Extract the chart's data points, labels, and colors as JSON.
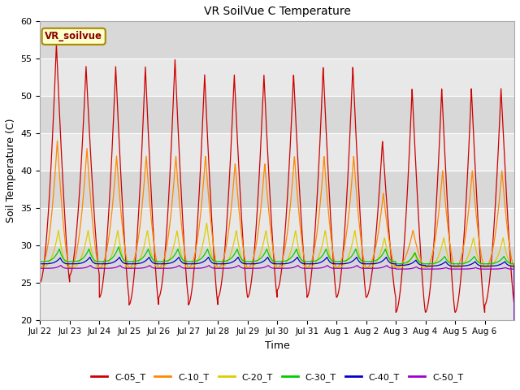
{
  "title": "VR SoilVue C Temperature",
  "xlabel": "Time",
  "ylabel": "Soil Temperature (C)",
  "ylim": [
    20,
    60
  ],
  "background_color": "#e8e8e8",
  "annotation_text": "VR_soilvue",
  "series": [
    {
      "label": "C-05_T",
      "color": "#cc0000"
    },
    {
      "label": "C-10_T",
      "color": "#ff8800"
    },
    {
      "label": "C-20_T",
      "color": "#ddcc00"
    },
    {
      "label": "C-30_T",
      "color": "#00cc00"
    },
    {
      "label": "C-40_T",
      "color": "#0000cc"
    },
    {
      "label": "C-50_T",
      "color": "#9900cc"
    }
  ],
  "xtick_labels": [
    "Jul 22",
    "Jul 23",
    "Jul 24",
    "Jul 25",
    "Jul 26",
    "Jul 27",
    "Jul 28",
    "Jul 29",
    "Jul 30",
    "Jul 31",
    "Aug 1",
    "Aug 2",
    "Aug 3",
    "Aug 4",
    "Aug 5",
    "Aug 6"
  ],
  "ytick_values": [
    20,
    25,
    30,
    35,
    40,
    45,
    50,
    55,
    60
  ],
  "band_colors": [
    "#e8e8e8",
    "#d8d8d8"
  ],
  "peak_05": [
    57,
    54,
    54,
    54,
    55,
    53,
    53,
    53,
    53,
    54,
    54,
    44,
    51,
    51,
    51,
    51
  ],
  "min_05": [
    25,
    26,
    23,
    22,
    23,
    22,
    23,
    23,
    24,
    23,
    23,
    23,
    21,
    21,
    21,
    22
  ],
  "peak_10": [
    44,
    43,
    42,
    42,
    42,
    42,
    41,
    41,
    42,
    42,
    42,
    37,
    32,
    40,
    40,
    40
  ],
  "min_10": [
    27,
    27,
    27,
    27,
    27,
    27,
    27,
    27,
    27,
    27,
    27,
    27,
    27,
    27,
    27,
    27
  ],
  "peak_20": [
    32,
    32,
    32,
    32,
    32,
    33,
    32,
    32,
    32,
    32,
    32,
    31,
    29,
    31,
    31,
    31
  ],
  "min_20": [
    27,
    27,
    27,
    27,
    27,
    27,
    27,
    27,
    27,
    27,
    27,
    27,
    27,
    27,
    27,
    27
  ],
  "peak_30": [
    29.5,
    29.5,
    29.8,
    29.5,
    29.5,
    29.5,
    29.5,
    29.5,
    29.5,
    29.5,
    29.5,
    29.5,
    29.0,
    28.5,
    28.5,
    28.5
  ],
  "min_30": [
    27.8,
    27.8,
    27.8,
    27.8,
    27.8,
    27.8,
    27.8,
    27.8,
    27.8,
    27.8,
    27.8,
    27.8,
    27.5,
    27.5,
    27.5,
    27.5
  ],
  "peak_40": [
    28.3,
    28.4,
    28.4,
    28.4,
    28.4,
    28.4,
    28.4,
    28.4,
    28.4,
    28.4,
    28.4,
    28.4,
    28.0,
    27.8,
    27.8,
    27.8
  ],
  "min_40": [
    27.5,
    27.5,
    27.5,
    27.5,
    27.5,
    27.5,
    27.5,
    27.5,
    27.5,
    27.5,
    27.5,
    27.5,
    27.3,
    27.2,
    27.2,
    27.2
  ],
  "peak_50": [
    27.3,
    27.3,
    27.3,
    27.3,
    27.3,
    27.3,
    27.3,
    27.3,
    27.3,
    27.3,
    27.3,
    27.3,
    27.1,
    27.0,
    27.0,
    27.0
  ],
  "min_50": [
    26.9,
    26.9,
    26.9,
    26.9,
    26.9,
    26.9,
    26.9,
    26.9,
    26.9,
    26.9,
    26.9,
    26.9,
    26.8,
    26.8,
    26.8,
    26.8
  ]
}
